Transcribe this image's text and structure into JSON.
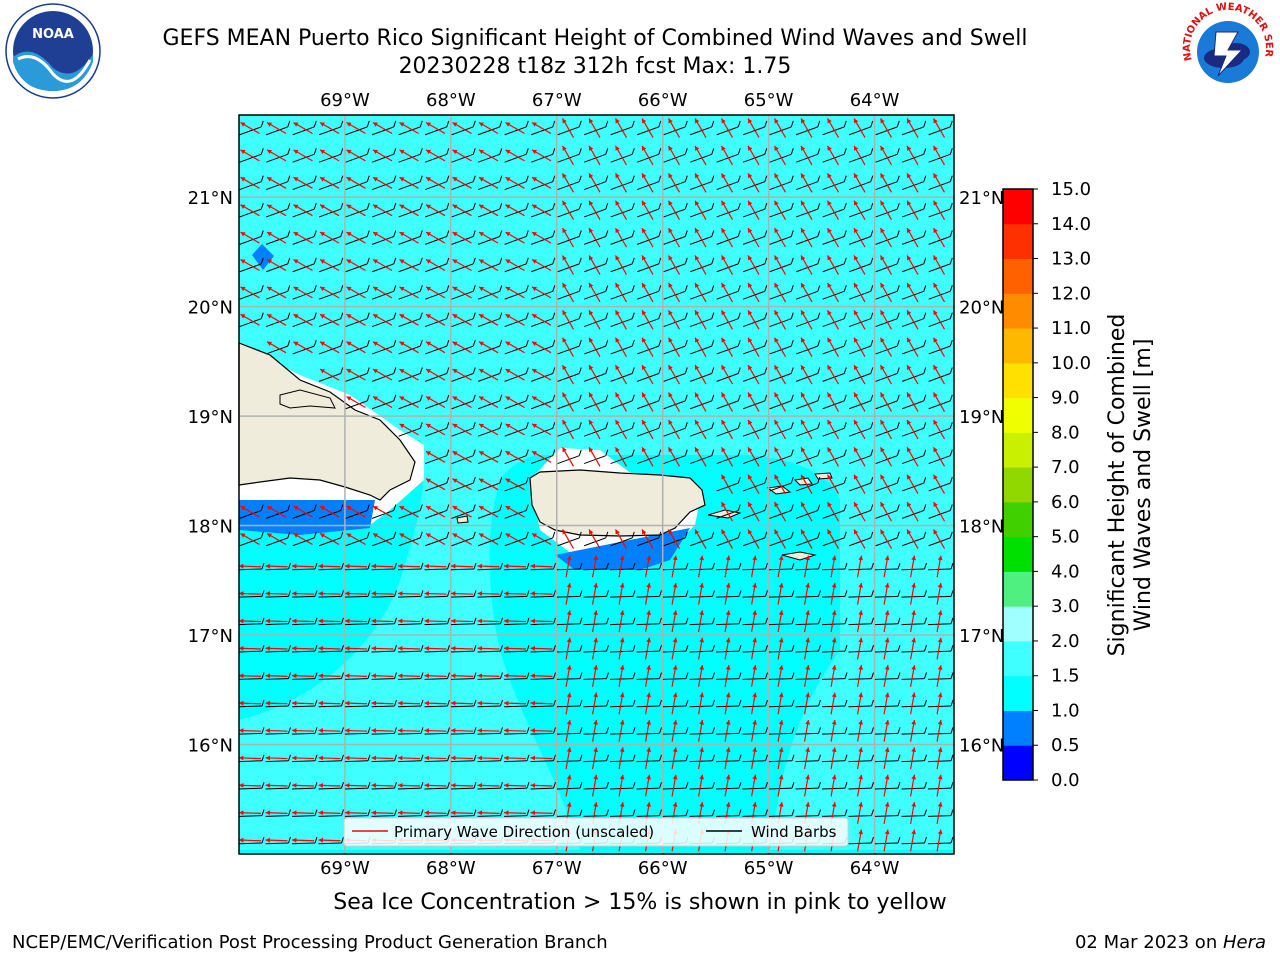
{
  "title": {
    "line1": "GEFS MEAN Puerto Rico Significant Height of Combined Wind Waves and Swell",
    "line2": "20230228 t18z 312h fcst   Max: 1.75"
  },
  "map": {
    "lon_labels": [
      "69°W",
      "68°W",
      "67°W",
      "66°W",
      "65°W",
      "64°W"
    ],
    "lat_labels": [
      "21°N",
      "20°N",
      "19°N",
      "18°N",
      "17°N",
      "16°N"
    ],
    "lon_values": [
      -69,
      -68,
      -67,
      -66,
      -65,
      -64
    ],
    "lat_values": [
      21,
      20,
      19,
      18,
      17,
      16
    ],
    "extent": {
      "lon": [
        -70,
        -63.25
      ],
      "lat": [
        15,
        21.75
      ]
    },
    "legend": {
      "wave_label": "Primary Wave Direction (unscaled)",
      "barb_label": "Wind Barbs"
    },
    "colors": {
      "ocean": "#00ffff",
      "land": "#efecdc",
      "arrow": "#ff0000",
      "barb": "#000000"
    }
  },
  "colorbar": {
    "label_line1": "Significant Height of Combined",
    "label_line2": "Wind Waves and Swell [m]",
    "levels": [
      "0.0",
      "0.5",
      "1.0",
      "1.5",
      "2.0",
      "3.0",
      "4.0",
      "5.0",
      "6.0",
      "7.0",
      "8.0",
      "9.0",
      "10.0",
      "11.0",
      "12.0",
      "13.0",
      "14.0",
      "15.0"
    ],
    "colors": [
      "#0000ff",
      "#0080ff",
      "#00ffff",
      "#40ffff",
      "#a0ffff",
      "#50f080",
      "#00e000",
      "#40d000",
      "#90d800",
      "#c8f000",
      "#f0ff00",
      "#ffe000",
      "#ffb800",
      "#ff8c00",
      "#ff6000",
      "#ff3000",
      "#ff0000"
    ]
  },
  "logos": {
    "noaa": "NOAA",
    "nws": "NATIONAL WEATHER SERVICE"
  },
  "notes": {
    "sea_ice": "Sea Ice Concentration > 15% is shown in pink to yellow"
  },
  "footer": {
    "left": "NCEP/EMC/Verification Post Processing Product Generation Branch",
    "date": "02 Mar 2023 on ",
    "host": "Hera"
  }
}
